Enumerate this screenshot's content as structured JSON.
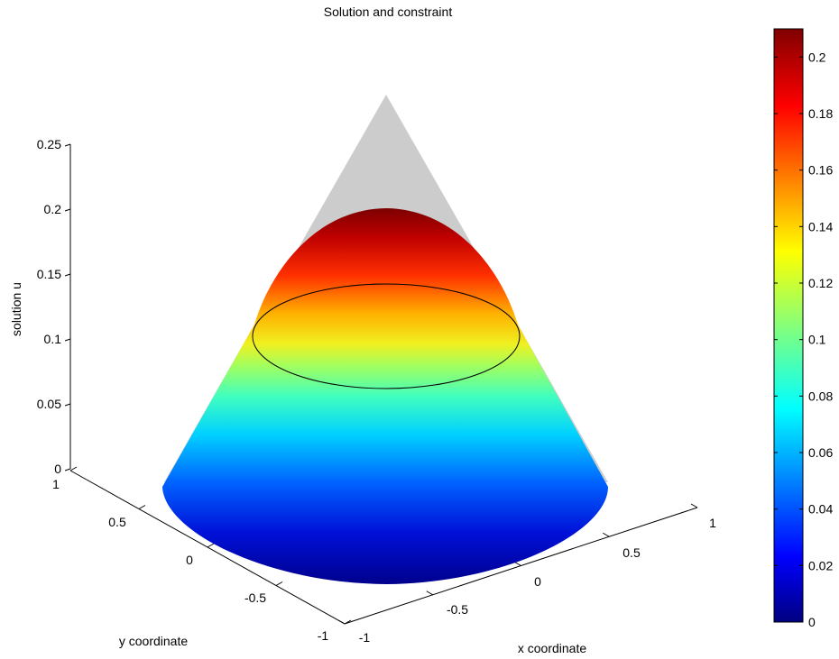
{
  "chart_data": {
    "type": "surface",
    "title": "Solution and constraint",
    "xlabel": "x coordinate",
    "ylabel": "y coordinate",
    "zlabel": "solution u",
    "xlim": [
      -1,
      1
    ],
    "ylim": [
      -1,
      1
    ],
    "zlim": [
      0,
      0.25
    ],
    "x_ticks": [
      "-1",
      "-0.5",
      "0",
      "0.5",
      "1"
    ],
    "y_ticks": [
      "-1",
      "-0.5",
      "0",
      "0.5",
      "1"
    ],
    "z_ticks": [
      "0",
      "0.05",
      "0.1",
      "0.15",
      "0.2",
      "0.25"
    ],
    "constraint": {
      "shape": "cone",
      "apex_height": 0.25,
      "color": "#cccccc"
    },
    "solution": {
      "max_value": 0.209,
      "contact_boundary_height": 0.1,
      "colormap": "jet"
    },
    "colorbar": {
      "range": [
        0,
        0.21
      ],
      "ticks": [
        "0",
        "0.02",
        "0.04",
        "0.06",
        "0.08",
        "0.1",
        "0.12",
        "0.14",
        "0.16",
        "0.18",
        "0.2"
      ]
    }
  }
}
